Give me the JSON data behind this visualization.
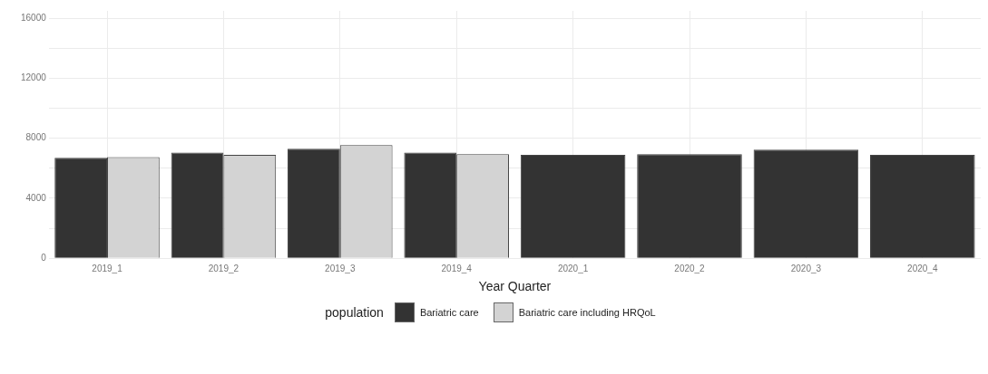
{
  "chart_data": {
    "type": "bar",
    "xlabel": "Year Quarter",
    "legend_title": "population",
    "legend": "bottom",
    "grid": true,
    "categories": [
      "2019_1",
      "2019_2",
      "2019_3",
      "2019_4",
      "2020_1",
      "2020_2",
      "2020_3",
      "2020_4"
    ],
    "ylim": [
      0,
      16500
    ],
    "yticks": [
      0,
      {
        "value": 2000,
        "label": null
      },
      4000,
      {
        "value": 6000,
        "label": null
      },
      8000,
      {
        "value": 10000,
        "label": null
      },
      12000,
      {
        "value": 14000,
        "label": null
      },
      16000
    ],
    "series": [
      {
        "name": "Bariatric care",
        "color": "#333333",
        "values": [
          6700,
          7050,
          7300,
          7050,
          6900,
          6950,
          7250,
          6900
        ]
      },
      {
        "name": "Bariatric care including HRQoL",
        "color": "#d3d3d3",
        "values": [
          6750,
          6900,
          7550,
          6950,
          null,
          null,
          null,
          null
        ]
      }
    ]
  }
}
